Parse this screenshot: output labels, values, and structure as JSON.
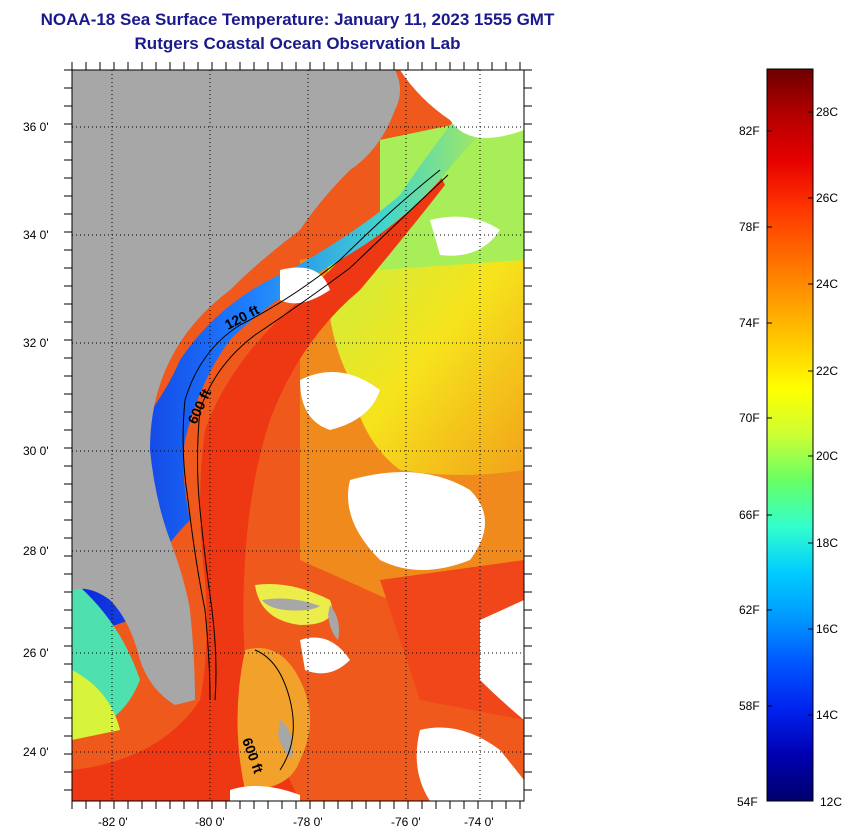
{
  "title": {
    "line1": "NOAA-18 Sea Surface Temperature:  January 11, 2023 1555 GMT",
    "line2": "Rutgers Coastal Ocean Observation Lab"
  },
  "map": {
    "lat_labels": [
      "36 0'",
      "34 0'",
      "32 0'",
      "30 0'",
      "28 0'",
      "26 0'",
      "24 0'"
    ],
    "lon_labels": [
      "-82 0'",
      "-80 0'",
      "-78 0'",
      "-76 0'",
      "-74 0'"
    ],
    "contour_labels": [
      "120 ft",
      "600 ft",
      "600 ft"
    ],
    "colors": {
      "land": "#a7a7a7",
      "clouds": "#ffffff",
      "gulf_stream": "#ee3a14",
      "shelf_cold": "#0b23d8"
    }
  },
  "colorbar": {
    "f_labels": [
      "82F",
      "78F",
      "74F",
      "70F",
      "66F",
      "62F",
      "58F",
      "54F"
    ],
    "c_labels": [
      "28C",
      "26C",
      "24C",
      "22C",
      "20C",
      "18C",
      "16C",
      "14C",
      "12C"
    ],
    "colors_top_to_bottom": [
      "#6e0000",
      "#b30000",
      "#e60000",
      "#ff3300",
      "#ff6600",
      "#ff9900",
      "#ffcc00",
      "#ffff00",
      "#ccff33",
      "#66ff66",
      "#33ffcc",
      "#00ccff",
      "#0099ff",
      "#0055ff",
      "#0022ee",
      "#0000b0",
      "#00006e"
    ]
  }
}
